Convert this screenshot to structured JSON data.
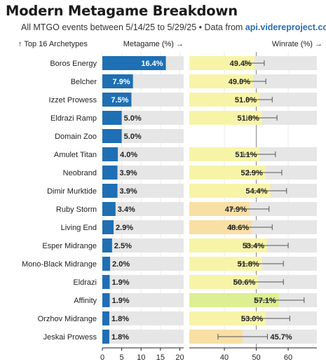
{
  "title": "Modern Metagame Breakdown",
  "subtitle": {
    "text": "All MTGO events between 5/14/25 to 5/29/25 • Data from ",
    "source": "api.videreproject.com"
  },
  "colors": {
    "meta_bar": "#1f6fb4",
    "meta_track": "#e6e6e6",
    "win_track": "#e6e6e6",
    "win_low": "#f8dfa4",
    "win_mid": "#f7f4a8",
    "win_high": "#dcef93",
    "error_bar": "#555555",
    "ref_line": "#888888"
  },
  "chart_data": [
    {
      "type": "bar",
      "orientation": "horizontal",
      "header_left": "↑ Top 16 Archetypes",
      "header_right": "Metagame (%) →",
      "categories": [
        "Boros Energy",
        "Belcher",
        "Izzet Prowess",
        "Eldrazi Ramp",
        "Domain Zoo",
        "Amulet Titan",
        "Neobrand",
        "Dimir Murktide",
        "Ruby Storm",
        "Living End",
        "Esper Midrange",
        "Mono-Black Midrange",
        "Eldrazi",
        "Affinity",
        "Orzhov Midrange",
        "Jeskai Prowess"
      ],
      "values": [
        16.4,
        7.9,
        7.5,
        5.0,
        5.0,
        4.0,
        3.9,
        3.9,
        3.4,
        2.9,
        2.5,
        2.0,
        1.9,
        1.9,
        1.8,
        1.8
      ],
      "value_labels": [
        "16.4%",
        "7.9%",
        "7.5%",
        "5.0%",
        "5.0%",
        "4.0%",
        "3.9%",
        "3.9%",
        "3.4%",
        "2.9%",
        "2.5%",
        "2.0%",
        "1.9%",
        "1.9%",
        "1.8%",
        "1.8%"
      ],
      "xlim": [
        0,
        21
      ],
      "xticks": [
        0,
        5,
        10,
        15,
        20
      ]
    },
    {
      "type": "bar",
      "orientation": "horizontal",
      "header": "Winrate (%) →",
      "categories": [
        "Boros Energy",
        "Belcher",
        "Izzet Prowess",
        "Eldrazi Ramp",
        "Domain Zoo",
        "Amulet Titan",
        "Neobrand",
        "Dimir Murktide",
        "Ruby Storm",
        "Living End",
        "Esper Midrange",
        "Mono-Black Midrange",
        "Eldrazi",
        "Affinity",
        "Orzhov Midrange",
        "Jeskai Prowess"
      ],
      "values": [
        49.4,
        49.0,
        51.0,
        51.8,
        null,
        51.1,
        52.9,
        54.4,
        47.9,
        48.6,
        53.4,
        51.8,
        50.6,
        57.1,
        53.0,
        45.7
      ],
      "value_labels": [
        "49.4%",
        "49.0%",
        "51.0%",
        "51.8%",
        "",
        "51.1%",
        "52.9%",
        "54.4%",
        "47.9%",
        "48.6%",
        "53.4%",
        "51.8%",
        "50.6%",
        "57.1%",
        "53.0%",
        "45.7%"
      ],
      "ci_low": [
        46.5,
        45.0,
        47.0,
        47.0,
        null,
        46.0,
        47.5,
        49.0,
        42.0,
        42.0,
        47.0,
        45.0,
        43.0,
        49.5,
        45.5,
        38.0
      ],
      "ci_high": [
        52.5,
        53.0,
        55.0,
        56.5,
        null,
        56.0,
        58.0,
        59.5,
        54.0,
        55.0,
        60.0,
        58.5,
        58.5,
        65.0,
        60.5,
        53.5
      ],
      "reference_line": 50,
      "xlim": [
        29,
        69
      ],
      "xticks": [
        40,
        50,
        60
      ]
    }
  ]
}
